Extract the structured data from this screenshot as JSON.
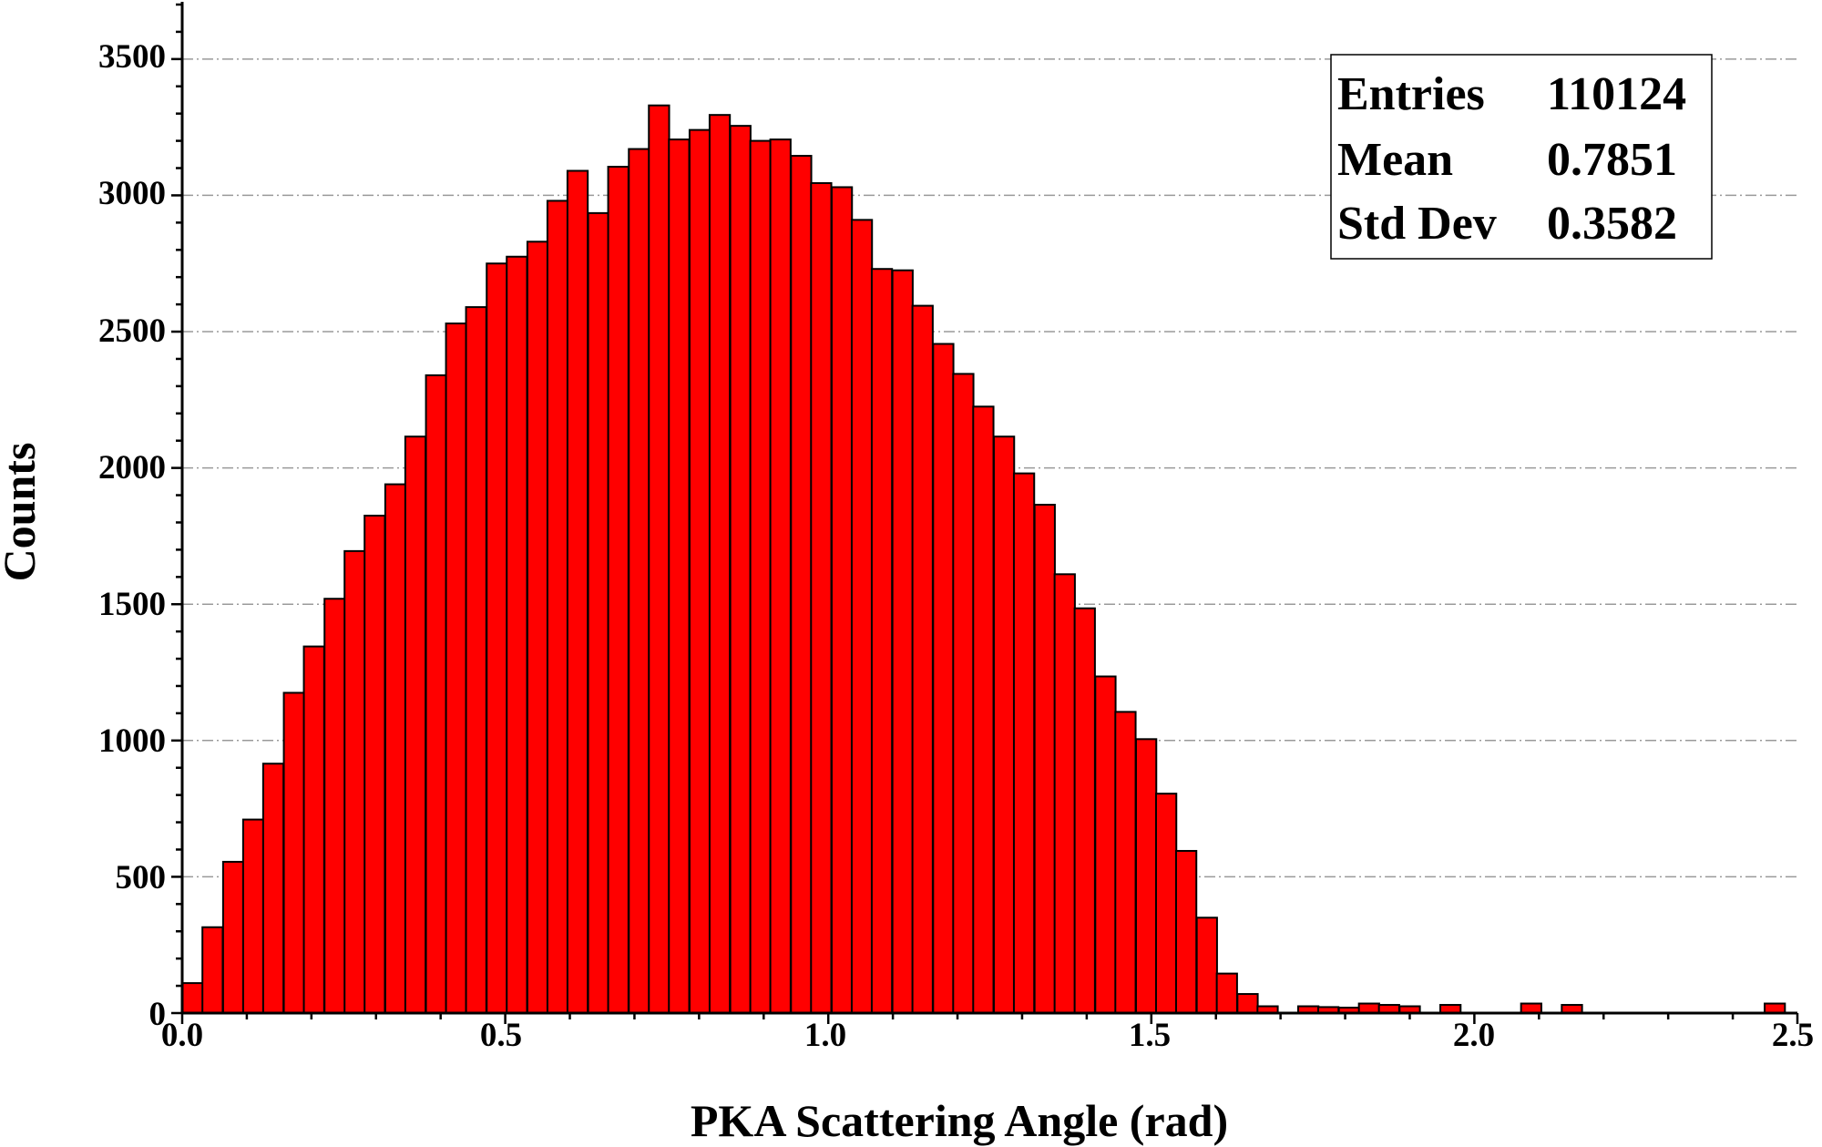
{
  "chart_data": {
    "type": "bar",
    "title": "",
    "xlabel": "PKA Scattering Angle (rad)",
    "ylabel": "Counts",
    "xlim": [
      0.0,
      2.5
    ],
    "ylim": [
      0,
      3700
    ],
    "bin_width": 0.0314,
    "x_ticks": [
      "0.0",
      "0.5",
      "1.0",
      "1.5",
      "2.0",
      "2.5"
    ],
    "y_ticks": [
      "0",
      "500",
      "1000",
      "1500",
      "2000",
      "2500",
      "3000",
      "3500"
    ],
    "grid": "horizontal dashed",
    "bar_color": "#ff0000",
    "bins": [
      {
        "x": 0.016,
        "y": 110
      },
      {
        "x": 0.047,
        "y": 315
      },
      {
        "x": 0.079,
        "y": 555
      },
      {
        "x": 0.11,
        "y": 710
      },
      {
        "x": 0.141,
        "y": 915
      },
      {
        "x": 0.173,
        "y": 1175
      },
      {
        "x": 0.204,
        "y": 1345
      },
      {
        "x": 0.236,
        "y": 1520
      },
      {
        "x": 0.267,
        "y": 1695
      },
      {
        "x": 0.298,
        "y": 1825
      },
      {
        "x": 0.33,
        "y": 1940
      },
      {
        "x": 0.361,
        "y": 2115
      },
      {
        "x": 0.393,
        "y": 2340
      },
      {
        "x": 0.424,
        "y": 2530
      },
      {
        "x": 0.455,
        "y": 2590
      },
      {
        "x": 0.487,
        "y": 2750
      },
      {
        "x": 0.518,
        "y": 2775
      },
      {
        "x": 0.55,
        "y": 2830
      },
      {
        "x": 0.581,
        "y": 2980
      },
      {
        "x": 0.612,
        "y": 3090
      },
      {
        "x": 0.644,
        "y": 2935
      },
      {
        "x": 0.675,
        "y": 3105
      },
      {
        "x": 0.707,
        "y": 3170
      },
      {
        "x": 0.738,
        "y": 3330
      },
      {
        "x": 0.769,
        "y": 3205
      },
      {
        "x": 0.801,
        "y": 3240
      },
      {
        "x": 0.832,
        "y": 3295
      },
      {
        "x": 0.864,
        "y": 3255
      },
      {
        "x": 0.895,
        "y": 3200
      },
      {
        "x": 0.926,
        "y": 3205
      },
      {
        "x": 0.958,
        "y": 3145
      },
      {
        "x": 0.989,
        "y": 3045
      },
      {
        "x": 1.021,
        "y": 3030
      },
      {
        "x": 1.052,
        "y": 2910
      },
      {
        "x": 1.083,
        "y": 2730
      },
      {
        "x": 1.115,
        "y": 2725
      },
      {
        "x": 1.146,
        "y": 2595
      },
      {
        "x": 1.178,
        "y": 2455
      },
      {
        "x": 1.209,
        "y": 2345
      },
      {
        "x": 1.24,
        "y": 2225
      },
      {
        "x": 1.272,
        "y": 2115
      },
      {
        "x": 1.303,
        "y": 1980
      },
      {
        "x": 1.335,
        "y": 1865
      },
      {
        "x": 1.366,
        "y": 1610
      },
      {
        "x": 1.397,
        "y": 1485
      },
      {
        "x": 1.429,
        "y": 1235
      },
      {
        "x": 1.46,
        "y": 1105
      },
      {
        "x": 1.492,
        "y": 1005
      },
      {
        "x": 1.523,
        "y": 805
      },
      {
        "x": 1.554,
        "y": 595
      },
      {
        "x": 1.586,
        "y": 350
      },
      {
        "x": 1.617,
        "y": 145
      },
      {
        "x": 1.649,
        "y": 70
      },
      {
        "x": 1.68,
        "y": 25
      },
      {
        "x": 1.743,
        "y": 25
      },
      {
        "x": 1.774,
        "y": 22
      },
      {
        "x": 1.806,
        "y": 20
      },
      {
        "x": 1.837,
        "y": 35
      },
      {
        "x": 1.868,
        "y": 30
      },
      {
        "x": 1.9,
        "y": 25
      },
      {
        "x": 1.963,
        "y": 30
      },
      {
        "x": 2.088,
        "y": 35
      },
      {
        "x": 2.151,
        "y": 30
      },
      {
        "x": 2.465,
        "y": 35
      }
    ],
    "stats_box": {
      "entries_label": "Entries",
      "entries_value": "110124",
      "mean_label": "Mean",
      "mean_value": "0.7851",
      "std_label": "Std Dev",
      "std_value": "0.3582",
      "position": "top-right"
    }
  }
}
